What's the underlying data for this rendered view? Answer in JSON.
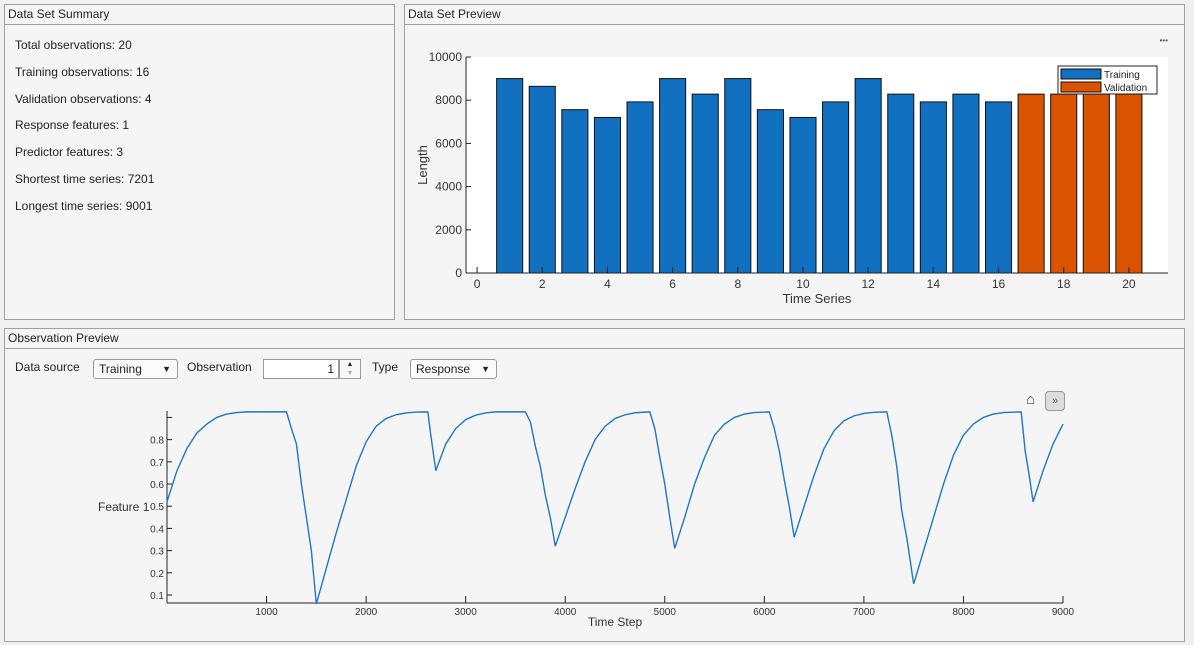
{
  "summary": {
    "title": "Data Set Summary",
    "stats": [
      "Total observations: 20",
      "Training observations: 16",
      "Validation observations: 4",
      "Response features: 1",
      "Predictor features: 3",
      "Shortest time series: 7201",
      "Longest time series: 9001"
    ]
  },
  "preview": {
    "title": "Data Set Preview",
    "more_label": "•••"
  },
  "observation": {
    "title": "Observation Preview",
    "data_source_label": "Data source",
    "data_source_value": "Training",
    "observation_label": "Observation",
    "observation_value": "1",
    "type_label": "Type",
    "type_value": "Response",
    "home_icon": "home-icon",
    "expand_icon": "chevron-double-right-icon"
  },
  "colors": {
    "training": "#1170bf",
    "validation": "#d95300",
    "line": "#1f77c8"
  },
  "chart_data": [
    {
      "type": "bar",
      "xlabel": "Time Series",
      "ylabel": "Length",
      "xlim": [
        -0.34,
        21.2
      ],
      "ylim": [
        0,
        10000
      ],
      "xticks": [
        "0",
        "2",
        "4",
        "6",
        "8",
        "10",
        "12",
        "14",
        "16",
        "18",
        "20"
      ],
      "yticks": [
        "0",
        "2000",
        "4000",
        "6000",
        "8000",
        "10000"
      ],
      "legend": {
        "position": "top-right",
        "entries": [
          "Training",
          "Validation"
        ]
      },
      "series": [
        {
          "name": "Training",
          "x": [
            1,
            2,
            3,
            4,
            5,
            6,
            7,
            8,
            9,
            10,
            11,
            12,
            13,
            14,
            15,
            16
          ],
          "values": [
            9001,
            8641,
            7561,
            7201,
            7921,
            9001,
            8281,
            9001,
            7561,
            7201,
            7921,
            9001,
            8281,
            7921,
            8281,
            7921
          ]
        },
        {
          "name": "Validation",
          "x": [
            17,
            18,
            19,
            20
          ],
          "values": [
            8281,
            8281,
            8281,
            8281
          ]
        }
      ]
    },
    {
      "type": "line",
      "xlabel": "Time Step",
      "ylabel": "Feature 1",
      "xlim": [
        0,
        9000
      ],
      "ylim": [
        0.064,
        0.965
      ],
      "xticks": [
        "1000",
        "2000",
        "3000",
        "4000",
        "5000",
        "6000",
        "7000",
        "8000",
        "9000"
      ],
      "yticks": [
        "0.1",
        "0.2",
        "0.3",
        "0.4",
        "0.5",
        "0.6",
        "0.7",
        "0.8"
      ],
      "x": [
        0,
        100,
        200,
        300,
        400,
        500,
        600,
        700,
        800,
        1200,
        1250,
        1300,
        1350,
        1400,
        1450,
        1500,
        1600,
        1700,
        1800,
        1900,
        2000,
        2100,
        2200,
        2300,
        2400,
        2500,
        2620,
        2650,
        2700,
        2800,
        2900,
        3000,
        3100,
        3200,
        3300,
        3600,
        3650,
        3700,
        3750,
        3800,
        3850,
        3900,
        4000,
        4100,
        4200,
        4300,
        4400,
        4500,
        4600,
        4700,
        4850,
        4900,
        4950,
        5000,
        5050,
        5100,
        5200,
        5300,
        5400,
        5500,
        5600,
        5700,
        5800,
        5900,
        6050,
        6100,
        6150,
        6200,
        6250,
        6300,
        6400,
        6500,
        6600,
        6700,
        6800,
        6900,
        7000,
        7100,
        7230,
        7280,
        7330,
        7380,
        7430,
        7500,
        7600,
        7700,
        7800,
        7900,
        8000,
        8100,
        8200,
        8300,
        8400,
        8580,
        8620,
        8660,
        8700,
        8800,
        8900,
        9000
      ],
      "y": [
        0.52,
        0.66,
        0.76,
        0.83,
        0.87,
        0.9,
        0.915,
        0.922,
        0.925,
        0.925,
        0.85,
        0.78,
        0.6,
        0.45,
        0.3,
        0.06,
        0.22,
        0.38,
        0.53,
        0.68,
        0.79,
        0.86,
        0.895,
        0.912,
        0.92,
        0.924,
        0.925,
        0.82,
        0.66,
        0.78,
        0.85,
        0.89,
        0.91,
        0.92,
        0.925,
        0.925,
        0.88,
        0.77,
        0.68,
        0.55,
        0.45,
        0.32,
        0.45,
        0.58,
        0.7,
        0.8,
        0.86,
        0.895,
        0.912,
        0.921,
        0.925,
        0.85,
        0.72,
        0.6,
        0.45,
        0.31,
        0.45,
        0.6,
        0.72,
        0.82,
        0.87,
        0.9,
        0.915,
        0.922,
        0.925,
        0.85,
        0.75,
        0.62,
        0.5,
        0.36,
        0.5,
        0.64,
        0.76,
        0.84,
        0.885,
        0.907,
        0.918,
        0.923,
        0.925,
        0.82,
        0.68,
        0.48,
        0.36,
        0.15,
        0.3,
        0.45,
        0.6,
        0.73,
        0.82,
        0.87,
        0.9,
        0.915,
        0.922,
        0.925,
        0.75,
        0.64,
        0.52,
        0.66,
        0.78,
        0.87
      ]
    }
  ]
}
